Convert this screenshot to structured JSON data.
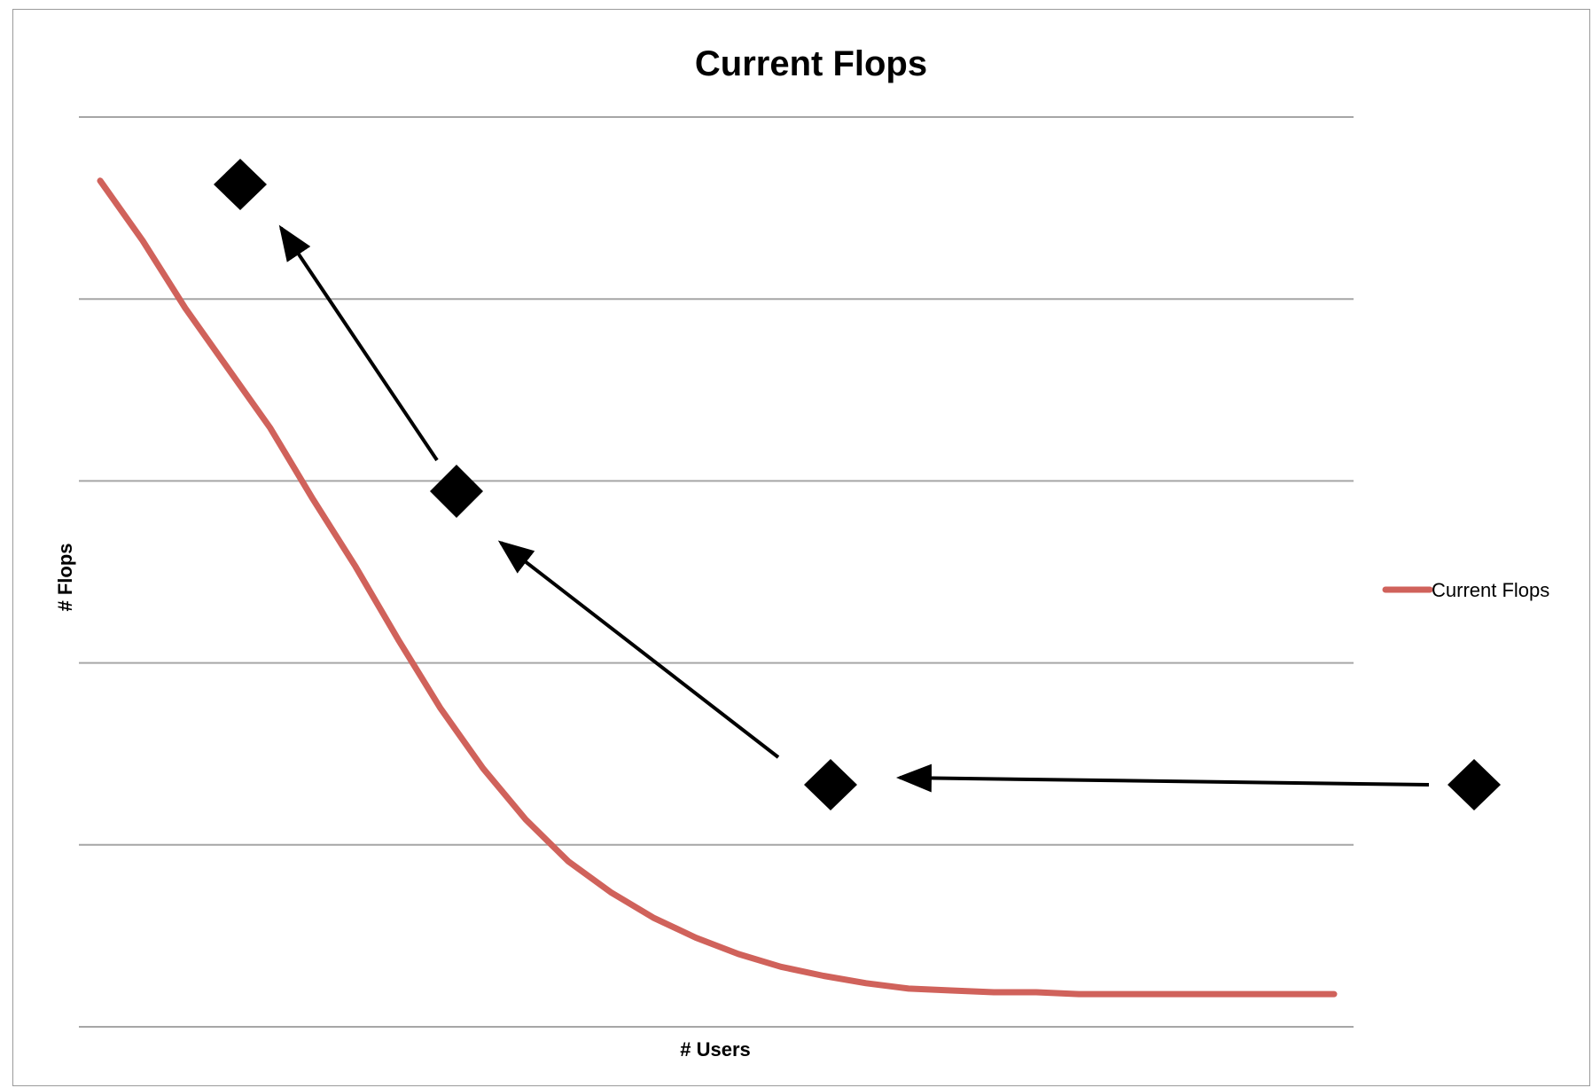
{
  "chart_data": {
    "type": "line",
    "title": "Current Flops",
    "xlabel": "# Users",
    "ylabel": "# Flops",
    "grid": true,
    "y_gridlines": 6,
    "x_ticks_labeled": false,
    "y_ticks_labeled": false,
    "legend_placement": "right",
    "series": [
      {
        "name": "Current Flops",
        "color": "#d0625b",
        "values": [
          4.65,
          4.32,
          3.95,
          3.62,
          3.29,
          2.9,
          2.53,
          2.13,
          1.75,
          1.42,
          1.14,
          0.91,
          0.74,
          0.6,
          0.49,
          0.4,
          0.33,
          0.28,
          0.24,
          0.21,
          0.2,
          0.19,
          0.19,
          0.18,
          0.18,
          0.18,
          0.18,
          0.18,
          0.18,
          0.18
        ]
      }
    ],
    "annotations": {
      "marker_shape": "diamond",
      "marker_color": "#000000",
      "arrow_color": "#000000",
      "arrows_count": 3,
      "markers_count": 4
    }
  }
}
